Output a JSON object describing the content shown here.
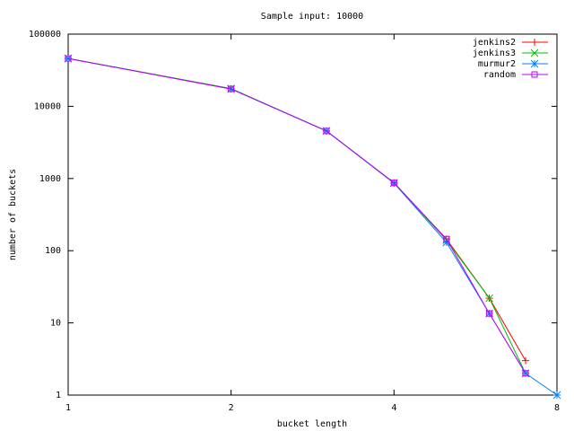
{
  "chart_data": {
    "type": "line",
    "title": "Sample input: 10000",
    "x_label": "bucket length",
    "y_label": "number of buckets",
    "x": [
      1,
      2,
      3,
      4,
      5,
      6,
      7,
      8
    ],
    "xscale": "log",
    "yscale": "log",
    "xlim": [
      1,
      8
    ],
    "ylim": [
      1,
      100000
    ],
    "xticks": [
      1,
      2,
      4,
      8
    ],
    "yticks": [
      1,
      10,
      100,
      1000,
      10000,
      100000
    ],
    "grid": false,
    "legend": "top-right",
    "series": [
      {
        "name": "jenkins2",
        "color": "#ff0000",
        "marker": "plus",
        "values": [
          46000,
          17400,
          4560,
          870,
          145,
          22,
          3,
          null
        ]
      },
      {
        "name": "jenkins3",
        "color": "#00c000",
        "marker": "cross",
        "values": [
          46000,
          17600,
          4560,
          870,
          140,
          22,
          2,
          null
        ]
      },
      {
        "name": "murmur2",
        "color": "#0080ff",
        "marker": "star",
        "values": [
          46000,
          17400,
          4560,
          860,
          130,
          13.5,
          2,
          1
        ]
      },
      {
        "name": "random",
        "color": "#c000ff",
        "marker": "square",
        "values": [
          46000,
          17400,
          4560,
          870,
          145,
          13.5,
          2,
          null
        ]
      }
    ]
  }
}
